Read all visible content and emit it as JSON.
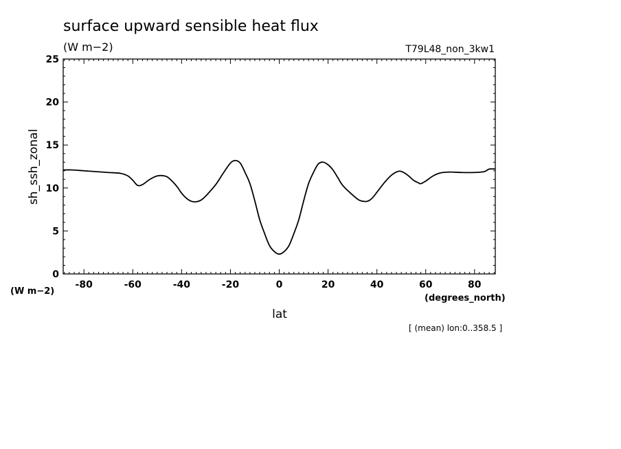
{
  "title": "surface upward sensible heat flux",
  "units": "(W m−2)",
  "run_id": "T79L48_non_3kw1",
  "footnote": "[ (mean) lon:0..358.5 ]",
  "chart_data": {
    "type": "line",
    "title": "surface upward sensible heat flux",
    "xlabel": "lat",
    "ylabel": "sh_ssh_zonal",
    "x_units": "(degrees_north)",
    "y_units": "(W m−2)",
    "xlim": [
      -88.5,
      88.5
    ],
    "ylim": [
      0,
      25
    ],
    "x_ticks": [
      -80,
      -60,
      -40,
      -20,
      0,
      20,
      40,
      60,
      80
    ],
    "y_ticks": [
      0,
      5,
      10,
      15,
      20,
      25
    ],
    "series": [
      {
        "x": [
          -88.5,
          -85,
          -80,
          -75,
          -70,
          -65,
          -62,
          -60,
          -58,
          -56,
          -53,
          -50,
          -47,
          -45,
          -42,
          -40,
          -38,
          -36,
          -34,
          -32,
          -30,
          -26,
          -23,
          -20,
          -18,
          -16,
          -14,
          -12,
          -10,
          -8,
          -6,
          -4,
          -2,
          0,
          2,
          4,
          6,
          8,
          10,
          12,
          14,
          16,
          18,
          20,
          22,
          24,
          26,
          30,
          33,
          36,
          38,
          40,
          43,
          46,
          49,
          51,
          53,
          55,
          57,
          58,
          60,
          63,
          66,
          70,
          75,
          80,
          84,
          86,
          88.5
        ],
        "y": [
          12.1,
          12.1,
          12.0,
          11.9,
          11.8,
          11.7,
          11.4,
          10.9,
          10.3,
          10.4,
          11.0,
          11.4,
          11.4,
          11.1,
          10.2,
          9.4,
          8.8,
          8.45,
          8.4,
          8.6,
          9.1,
          10.4,
          11.7,
          12.9,
          13.2,
          12.9,
          11.8,
          10.5,
          8.5,
          6.3,
          4.7,
          3.3,
          2.6,
          2.3,
          2.6,
          3.3,
          4.7,
          6.3,
          8.5,
          10.5,
          11.8,
          12.8,
          13.0,
          12.7,
          12.1,
          11.2,
          10.3,
          9.2,
          8.55,
          8.45,
          8.8,
          9.5,
          10.6,
          11.5,
          11.95,
          11.8,
          11.4,
          10.9,
          10.6,
          10.5,
          10.8,
          11.4,
          11.75,
          11.85,
          11.8,
          11.8,
          11.9,
          12.2,
          12.2
        ]
      }
    ]
  }
}
